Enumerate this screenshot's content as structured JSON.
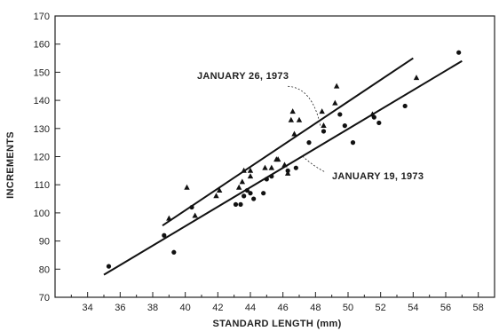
{
  "chart_data": {
    "type": "scatter",
    "xlabel": "STANDARD LENGTH (mm)",
    "ylabel": "INCREMENTS",
    "xlim": [
      32,
      59
    ],
    "ylim": [
      70,
      170
    ],
    "x_ticks": [
      34,
      36,
      38,
      40,
      42,
      44,
      46,
      48,
      50,
      52,
      54,
      56,
      58
    ],
    "y_ticks": [
      70,
      80,
      90,
      100,
      110,
      120,
      130,
      140,
      150,
      160,
      170
    ],
    "grid": false,
    "series": [
      {
        "name": "JANUARY 26, 1973",
        "marker": "triangle",
        "points": [
          [
            39.0,
            98
          ],
          [
            40.1,
            109
          ],
          [
            40.6,
            99
          ],
          [
            41.9,
            106
          ],
          [
            42.1,
            108
          ],
          [
            43.3,
            109
          ],
          [
            43.5,
            111
          ],
          [
            43.6,
            115
          ],
          [
            44.0,
            113
          ],
          [
            44.0,
            115
          ],
          [
            44.9,
            116
          ],
          [
            45.3,
            116
          ],
          [
            45.6,
            119
          ],
          [
            45.7,
            119
          ],
          [
            46.1,
            117
          ],
          [
            46.3,
            114
          ],
          [
            46.5,
            133
          ],
          [
            46.6,
            136
          ],
          [
            46.7,
            128
          ],
          [
            47.0,
            133
          ],
          [
            48.4,
            136
          ],
          [
            48.5,
            131
          ],
          [
            49.2,
            139
          ],
          [
            49.3,
            145
          ],
          [
            51.5,
            135
          ],
          [
            54.2,
            148
          ]
        ],
        "fit_line": [
          [
            38.6,
            95.5
          ],
          [
            54.0,
            155.0
          ]
        ]
      },
      {
        "name": "JANUARY 19, 1973",
        "marker": "circle",
        "points": [
          [
            35.3,
            81
          ],
          [
            38.7,
            92
          ],
          [
            39.3,
            86
          ],
          [
            40.4,
            102
          ],
          [
            43.1,
            103
          ],
          [
            43.4,
            103
          ],
          [
            43.6,
            106
          ],
          [
            43.8,
            108
          ],
          [
            44.0,
            107
          ],
          [
            44.2,
            105
          ],
          [
            44.8,
            107
          ],
          [
            45.0,
            112
          ],
          [
            45.3,
            113
          ],
          [
            46.3,
            115
          ],
          [
            46.8,
            116
          ],
          [
            47.6,
            125
          ],
          [
            48.5,
            129
          ],
          [
            49.5,
            135
          ],
          [
            49.8,
            131
          ],
          [
            50.3,
            125
          ],
          [
            51.6,
            134
          ],
          [
            51.9,
            132
          ],
          [
            53.5,
            138
          ],
          [
            56.8,
            157
          ]
        ],
        "fit_line": [
          [
            35.0,
            78.0
          ],
          [
            57.0,
            154.0
          ]
        ]
      }
    ],
    "annotations": [
      {
        "text": "JANUARY 26, 1973",
        "series": 0
      },
      {
        "text": "JANUARY 19, 1973",
        "series": 1
      }
    ]
  }
}
